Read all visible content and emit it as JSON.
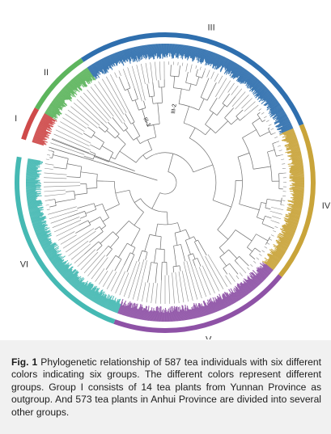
{
  "figure": {
    "groups": [
      {
        "label": "I",
        "color": "#cf4a4a",
        "a0": 287,
        "a1": 300
      },
      {
        "label": "II",
        "color": "#5db55d",
        "a0": 300,
        "a1": 326
      },
      {
        "label": "III",
        "color": "#2f6fae",
        "a0": 326,
        "a1": 67
      },
      {
        "label": "IV",
        "color": "#c9a43a",
        "a0": 67,
        "a1": 129
      },
      {
        "label": "V",
        "color": "#8e52a6",
        "a0": 129,
        "a1": 200
      },
      {
        "label": "VI",
        "color": "#45b9b3",
        "a0": 200,
        "a1": 280
      }
    ],
    "subgroup_labels": [
      "III-1",
      "III-2"
    ]
  },
  "caption": {
    "label": "Fig. 1",
    "text": " Phylogenetic relationship of 587 tea individuals with six different colors indicating six groups.  The different colors represent different groups.  Group I consists of 14 tea plants from Yunnan Province as outgroup.  And 573 tea plants in Anhui Province are divided into several other groups."
  }
}
